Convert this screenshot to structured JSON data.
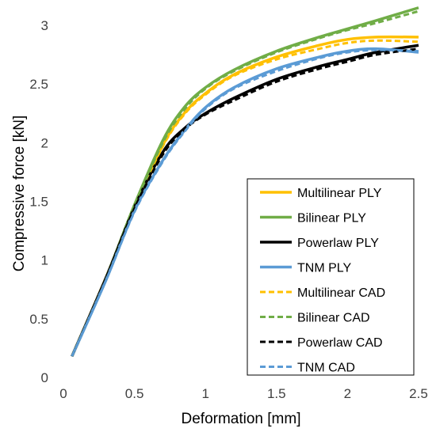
{
  "chart_data": {
    "type": "line",
    "xlabel": "Deformation [mm]",
    "ylabel": "Compressive force [kN]",
    "xlim": [
      0,
      2.5
    ],
    "ylim": [
      0,
      3.0
    ],
    "x_ticks": [
      "0",
      "0.5",
      "1",
      "1.5",
      "2",
      "2.5"
    ],
    "y_ticks": [
      "0",
      "0.5",
      "1",
      "1.5",
      "2",
      "2.5",
      "3"
    ],
    "grid": false,
    "legend_position": "bottom-right",
    "series": [
      {
        "name": "Multilinear PLY",
        "color": "#FFC000",
        "style": "solid",
        "x": [
          0.06,
          0.3,
          0.5,
          0.7,
          0.85,
          1.0,
          1.2,
          1.5,
          1.8,
          2.0,
          2.2,
          2.5
        ],
        "y": [
          0.18,
          0.85,
          1.45,
          1.98,
          2.25,
          2.42,
          2.58,
          2.73,
          2.83,
          2.88,
          2.9,
          2.9
        ]
      },
      {
        "name": "Bilinear PLY",
        "color": "#70AD47",
        "style": "solid",
        "x": [
          0.06,
          0.3,
          0.5,
          0.7,
          0.85,
          1.0,
          1.2,
          1.5,
          1.8,
          2.0,
          2.2,
          2.5
        ],
        "y": [
          0.18,
          0.85,
          1.47,
          2.02,
          2.3,
          2.47,
          2.62,
          2.78,
          2.9,
          2.97,
          3.04,
          3.15
        ]
      },
      {
        "name": "Powerlaw PLY",
        "color": "#000000",
        "style": "solid",
        "x": [
          0.06,
          0.3,
          0.5,
          0.7,
          0.85,
          1.0,
          1.2,
          1.5,
          1.8,
          2.0,
          2.2,
          2.5
        ],
        "y": [
          0.18,
          0.85,
          1.45,
          1.92,
          2.12,
          2.25,
          2.38,
          2.54,
          2.65,
          2.71,
          2.77,
          2.83
        ]
      },
      {
        "name": "TNM PLY",
        "color": "#5B9BD5",
        "style": "solid",
        "x": [
          0.06,
          0.3,
          0.5,
          0.7,
          0.85,
          1.0,
          1.2,
          1.5,
          1.8,
          2.0,
          2.2,
          2.5
        ],
        "y": [
          0.18,
          0.83,
          1.42,
          1.85,
          2.1,
          2.3,
          2.47,
          2.63,
          2.73,
          2.78,
          2.8,
          2.77
        ]
      },
      {
        "name": "Multilinear CAD",
        "color": "#FFC000",
        "style": "dashed",
        "x": [
          0.06,
          0.3,
          0.5,
          0.7,
          0.85,
          1.0,
          1.2,
          1.5,
          1.8,
          2.0,
          2.2,
          2.5
        ],
        "y": [
          0.18,
          0.85,
          1.45,
          1.97,
          2.24,
          2.41,
          2.57,
          2.71,
          2.8,
          2.85,
          2.87,
          2.86
        ]
      },
      {
        "name": "Bilinear CAD",
        "color": "#70AD47",
        "style": "dashed",
        "x": [
          0.06,
          0.3,
          0.5,
          0.7,
          0.85,
          1.0,
          1.2,
          1.5,
          1.8,
          2.0,
          2.2,
          2.5
        ],
        "y": [
          0.18,
          0.85,
          1.46,
          2.0,
          2.28,
          2.46,
          2.61,
          2.77,
          2.89,
          2.96,
          3.02,
          3.12
        ]
      },
      {
        "name": "Powerlaw CAD",
        "color": "#000000",
        "style": "dashed",
        "x": [
          0.06,
          0.3,
          0.5,
          0.7,
          0.85,
          1.0,
          1.2,
          1.5,
          1.8,
          2.0,
          2.2,
          2.5
        ],
        "y": [
          0.18,
          0.85,
          1.44,
          1.9,
          2.11,
          2.24,
          2.36,
          2.52,
          2.63,
          2.69,
          2.75,
          2.8
        ]
      },
      {
        "name": "TNM CAD",
        "color": "#5B9BD5",
        "style": "dashed",
        "x": [
          0.06,
          0.3,
          0.5,
          0.7,
          0.85,
          1.0,
          1.2,
          1.5,
          1.8,
          2.0,
          2.2,
          2.5
        ],
        "y": [
          0.18,
          0.83,
          1.41,
          1.84,
          2.09,
          2.29,
          2.46,
          2.61,
          2.72,
          2.77,
          2.79,
          2.78
        ]
      }
    ]
  }
}
